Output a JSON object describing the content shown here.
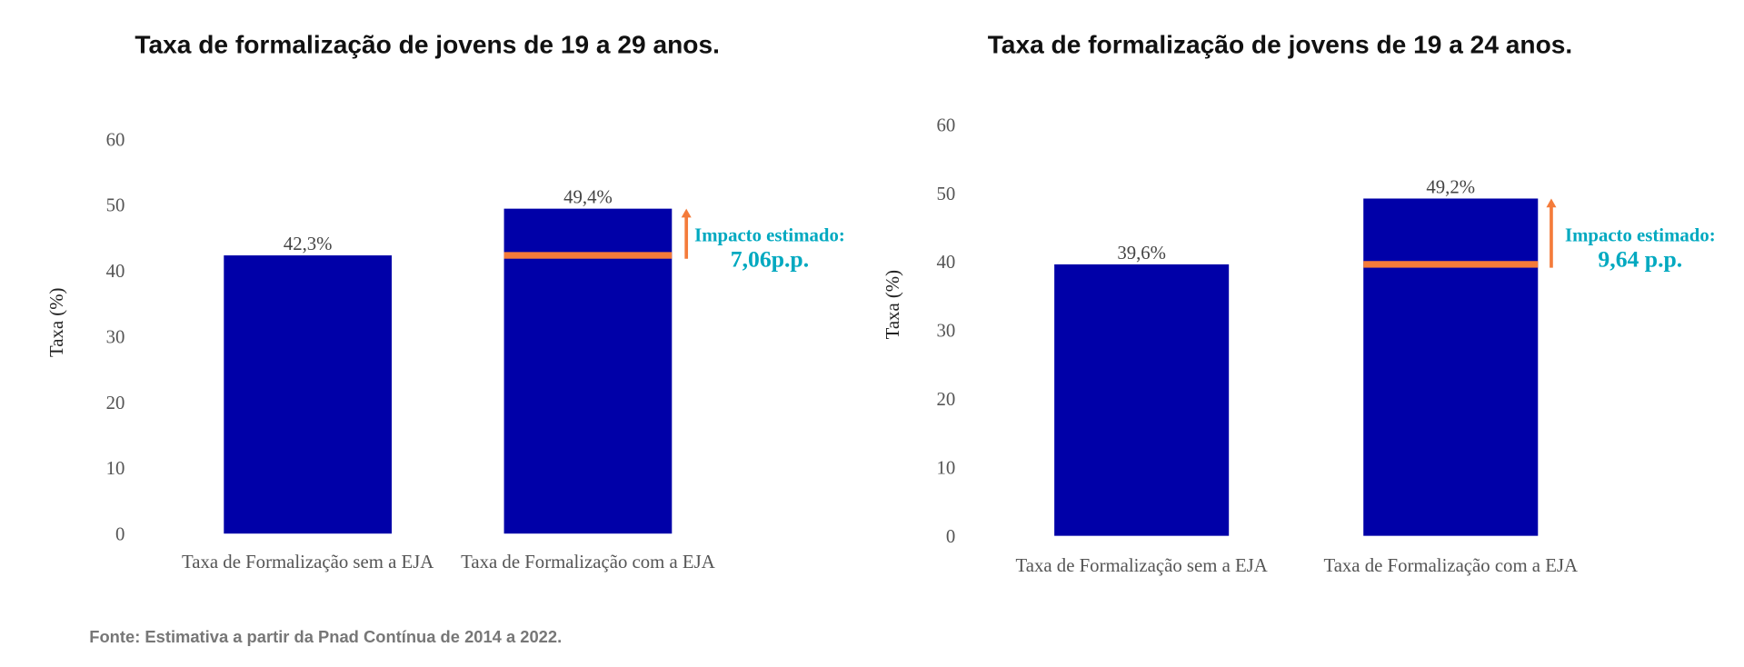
{
  "colors": {
    "bar": "#0000A8",
    "baseline_marker": "#F47B3A",
    "arrow": "#F47B3A",
    "annotation": "#00A9C0"
  },
  "source": "Fonte: Estimativa a partir da Pnad Contínua de 2014 a 2022.",
  "chart_data": [
    {
      "type": "bar",
      "title": "Taxa de formalização de jovens de 19 a 29 anos.",
      "ylabel": "Taxa (%)",
      "xlabel": "",
      "ylim": [
        0,
        60
      ],
      "yticks": [
        0,
        10,
        20,
        30,
        40,
        50,
        60
      ],
      "grid": false,
      "categories": [
        "Taxa de Formalização sem a EJA",
        "Taxa de Formalização com a EJA"
      ],
      "values": [
        42.3,
        49.4
      ],
      "data_labels": [
        "42,3%",
        "49,4%"
      ],
      "baseline_marker_value": 42.3,
      "annotation": {
        "line1": "Impacto estimado:",
        "line2": "7,06p.p."
      }
    },
    {
      "type": "bar",
      "title": "Taxa de formalização de jovens de 19 a 24 anos.",
      "ylabel": "Taxa (%)",
      "xlabel": "",
      "ylim": [
        0,
        60
      ],
      "yticks": [
        0,
        10,
        20,
        30,
        40,
        50,
        60
      ],
      "grid": false,
      "categories": [
        "Taxa de Formalização sem a EJA",
        "Taxa de Formalização com a EJA"
      ],
      "values": [
        39.6,
        49.2
      ],
      "data_labels": [
        "39,6%",
        "49,2%"
      ],
      "baseline_marker_value": 39.6,
      "annotation": {
        "line1": "Impacto estimado:",
        "line2": "9,64 p.p."
      }
    }
  ]
}
